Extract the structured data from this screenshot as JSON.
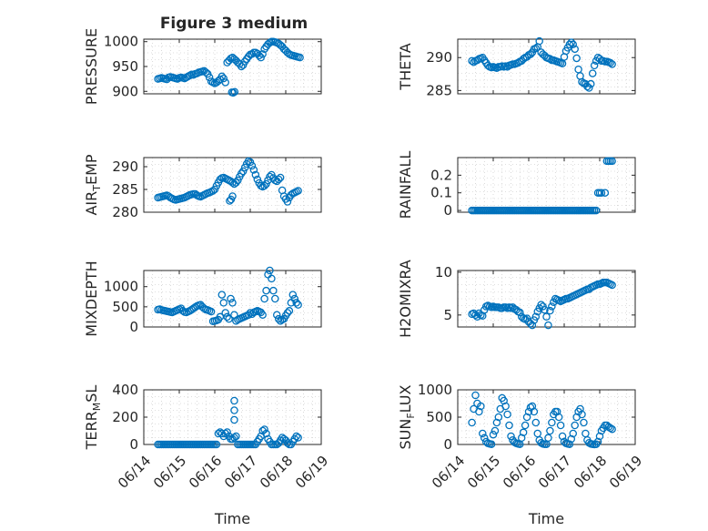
{
  "figure": {
    "title": "Figure 3 medium"
  },
  "colors": {
    "marker": "#0072BD",
    "grid": "#bfbfbf",
    "axis": "#262626"
  },
  "chart_data": [
    {
      "type": "scatter",
      "ylabel": "PRESSURE",
      "yticks": [
        "900",
        "950",
        "1000"
      ],
      "ylim": [
        895,
        1005
      ],
      "xlim": [
        "06/14",
        "06/19"
      ],
      "grid": true,
      "x": [
        0.4,
        0.45,
        0.5,
        0.55,
        0.6,
        0.65,
        0.7,
        0.75,
        0.8,
        0.85,
        0.9,
        0.95,
        1.0,
        1.05,
        1.1,
        1.15,
        1.2,
        1.25,
        1.3,
        1.35,
        1.4,
        1.45,
        1.5,
        1.55,
        1.6,
        1.65,
        1.7,
        1.75,
        1.8,
        1.85,
        1.9,
        1.95,
        2.0,
        2.05,
        2.1,
        2.15,
        2.2,
        2.25,
        2.3,
        2.35,
        2.4,
        2.45,
        2.5,
        2.55,
        2.6,
        2.65,
        2.7,
        2.75,
        2.8,
        2.85,
        2.9,
        2.95,
        3.0,
        3.05,
        3.1,
        3.15,
        3.2,
        3.25,
        3.3,
        3.35,
        3.4,
        3.45,
        3.5,
        3.55,
        3.6,
        3.65,
        3.7,
        3.75,
        3.8,
        3.85,
        3.9,
        3.95,
        4.0,
        4.05,
        4.1,
        4.15,
        4.2,
        4.25,
        4.3,
        4.35,
        4.4,
        2.48,
        2.52,
        2.56
      ],
      "y": [
        925,
        926,
        927,
        926,
        925,
        924,
        928,
        929,
        928,
        927,
        926,
        925,
        927,
        928,
        927,
        926,
        928,
        930,
        932,
        934,
        933,
        935,
        936,
        938,
        939,
        940,
        941,
        938,
        935,
        928,
        920,
        918,
        916,
        918,
        921,
        924,
        930,
        926,
        918,
        958,
        962,
        966,
        968,
        965,
        962,
        958,
        955,
        950,
        953,
        960,
        965,
        970,
        974,
        975,
        978,
        978,
        976,
        972,
        968,
        975,
        985,
        990,
        995,
        998,
        1000,
        1000,
        999,
        998,
        996,
        993,
        990,
        985,
        982,
        978,
        975,
        973,
        972,
        971,
        970,
        969,
        968,
        898,
        897,
        899
      ]
    },
    {
      "type": "scatter",
      "ylabel": "THETA",
      "yticks": [
        "285",
        "290"
      ],
      "ylim": [
        284.5,
        292.8
      ],
      "xlim": [
        "06/14",
        "06/19"
      ],
      "grid": true,
      "x": [
        0.4,
        0.45,
        0.5,
        0.55,
        0.6,
        0.65,
        0.7,
        0.75,
        0.8,
        0.85,
        0.9,
        0.95,
        1.0,
        1.05,
        1.1,
        1.15,
        1.2,
        1.25,
        1.3,
        1.35,
        1.4,
        1.45,
        1.5,
        1.55,
        1.6,
        1.65,
        1.7,
        1.75,
        1.8,
        1.85,
        1.9,
        1.95,
        2.0,
        2.05,
        2.1,
        2.15,
        2.2,
        2.25,
        2.3,
        2.35,
        2.4,
        2.45,
        2.5,
        2.55,
        2.6,
        2.65,
        2.7,
        2.75,
        2.8,
        2.85,
        2.9,
        2.95,
        3.0,
        3.05,
        3.1,
        3.15,
        3.2,
        3.25,
        3.3,
        3.35,
        3.4,
        3.45,
        3.5,
        3.55,
        3.6,
        3.65,
        3.7,
        3.75,
        3.8,
        3.85,
        3.9,
        3.95,
        4.0,
        4.05,
        4.1,
        4.15,
        4.2,
        4.25,
        4.3,
        4.35
      ],
      "y": [
        289.5,
        289.3,
        289.5,
        289.6,
        289.8,
        289.9,
        290.0,
        289.6,
        289.2,
        288.8,
        288.6,
        288.5,
        288.6,
        288.5,
        288.4,
        288.6,
        288.6,
        288.7,
        288.6,
        288.7,
        288.6,
        288.8,
        288.9,
        289.0,
        289.0,
        289.1,
        289.2,
        289.4,
        289.5,
        289.8,
        290.0,
        290.1,
        290.4,
        290.5,
        290.8,
        291.3,
        291.4,
        291.6,
        292.5,
        290.8,
        290.5,
        290.3,
        290.0,
        289.9,
        289.8,
        289.6,
        289.6,
        289.5,
        289.4,
        289.3,
        289.2,
        289.1,
        290.1,
        291.0,
        291.5,
        292.0,
        292.3,
        292.0,
        291.3,
        289.9,
        288.2,
        287.2,
        286.3,
        286.1,
        286.0,
        285.6,
        285.4,
        286.0,
        287.6,
        288.8,
        289.5,
        290.0,
        289.8,
        289.5,
        289.5,
        289.4,
        289.4,
        289.3,
        289.2,
        289.0
      ]
    },
    {
      "type": "scatter",
      "ylabel": "AIR_TEMP",
      "yticks": [
        "280",
        "285",
        "290"
      ],
      "ylim": [
        280.0,
        292.0
      ],
      "xlim": [
        "06/14",
        "06/19"
      ],
      "grid": true,
      "x": [
        0.4,
        0.45,
        0.5,
        0.55,
        0.6,
        0.65,
        0.7,
        0.75,
        0.8,
        0.85,
        0.9,
        0.95,
        1.0,
        1.05,
        1.1,
        1.15,
        1.2,
        1.25,
        1.3,
        1.35,
        1.4,
        1.45,
        1.5,
        1.55,
        1.6,
        1.65,
        1.7,
        1.75,
        1.8,
        1.85,
        1.9,
        1.95,
        2.0,
        2.05,
        2.1,
        2.15,
        2.2,
        2.25,
        2.3,
        2.35,
        2.4,
        2.45,
        2.5,
        2.55,
        2.6,
        2.65,
        2.7,
        2.75,
        2.8,
        2.85,
        2.9,
        2.95,
        3.0,
        3.05,
        3.1,
        3.15,
        3.2,
        3.25,
        3.3,
        3.35,
        3.4,
        3.45,
        3.5,
        3.55,
        3.6,
        3.65,
        3.7,
        3.75,
        3.8,
        3.85,
        3.9,
        3.95,
        4.0,
        4.05,
        4.1,
        4.15,
        4.2,
        4.25,
        4.3,
        4.35,
        2.42,
        2.46,
        2.5
      ],
      "y": [
        283.2,
        283.3,
        283.4,
        283.5,
        283.6,
        283.7,
        283.5,
        283.2,
        283.0,
        282.8,
        282.7,
        282.8,
        282.9,
        283.0,
        283.1,
        283.2,
        283.4,
        283.6,
        283.8,
        283.9,
        284.0,
        284.0,
        283.7,
        283.5,
        283.4,
        283.6,
        283.8,
        284.0,
        284.2,
        284.3,
        284.5,
        284.7,
        285.0,
        285.8,
        286.5,
        287.2,
        287.5,
        287.6,
        287.4,
        287.2,
        287.0,
        286.8,
        286.5,
        286.2,
        286.5,
        287.0,
        287.8,
        288.5,
        289.0,
        289.8,
        290.6,
        291.2,
        291.0,
        290.2,
        289.3,
        288.2,
        287.2,
        286.4,
        285.8,
        285.6,
        285.8,
        286.2,
        287.0,
        287.8,
        288.2,
        287.5,
        287.0,
        286.8,
        287.2,
        287.6,
        284.8,
        283.5,
        282.9,
        282.3,
        283.2,
        283.8,
        284.1,
        284.3,
        284.5,
        284.7,
        282.5,
        282.8,
        283.5
      ]
    },
    {
      "type": "scatter",
      "ylabel": "RAINFALL",
      "yticks": [
        "0",
        "0.1",
        "0.2"
      ],
      "ylim": [
        -0.01,
        0.3
      ],
      "xlim": [
        "06/14",
        "06/19"
      ],
      "grid": true,
      "x": [
        0.4,
        0.45,
        0.5,
        0.55,
        0.6,
        0.65,
        0.7,
        0.75,
        0.8,
        0.85,
        0.9,
        0.95,
        1.0,
        1.05,
        1.1,
        1.15,
        1.2,
        1.25,
        1.3,
        1.35,
        1.4,
        1.45,
        1.5,
        1.55,
        1.6,
        1.65,
        1.7,
        1.75,
        1.8,
        1.85,
        1.9,
        1.95,
        2.0,
        2.05,
        2.1,
        2.15,
        2.2,
        2.25,
        2.3,
        2.35,
        2.4,
        2.45,
        2.5,
        2.55,
        2.6,
        2.65,
        2.7,
        2.75,
        2.8,
        2.85,
        2.9,
        2.95,
        3.0,
        3.05,
        3.1,
        3.15,
        3.2,
        3.25,
        3.3,
        3.35,
        3.4,
        3.45,
        3.5,
        3.55,
        3.6,
        3.65,
        3.7,
        3.75,
        3.8,
        3.85,
        3.9,
        3.95,
        4.0,
        4.05,
        4.15,
        4.2,
        4.25,
        4.3,
        4.35
      ],
      "y": [
        0,
        0,
        0,
        0,
        0,
        0,
        0,
        0,
        0,
        0,
        0,
        0,
        0,
        0,
        0,
        0,
        0,
        0,
        0,
        0,
        0,
        0,
        0,
        0,
        0,
        0,
        0,
        0,
        0,
        0,
        0,
        0,
        0,
        0,
        0,
        0,
        0,
        0,
        0,
        0,
        0,
        0,
        0,
        0,
        0,
        0,
        0,
        0,
        0,
        0,
        0,
        0,
        0,
        0,
        0,
        0,
        0,
        0,
        0,
        0,
        0,
        0,
        0,
        0,
        0,
        0,
        0,
        0,
        0,
        0,
        0,
        0.1,
        0.1,
        0.1,
        0.1,
        0.28,
        0.28,
        0.28,
        0.28
      ]
    },
    {
      "type": "scatter",
      "ylabel": "MIXDEPTH",
      "yticks": [
        "0",
        "500",
        "1000"
      ],
      "ylim": [
        0,
        1400
      ],
      "xlim": [
        "06/14",
        "06/19"
      ],
      "grid": true,
      "x": [
        0.4,
        0.45,
        0.5,
        0.55,
        0.6,
        0.65,
        0.7,
        0.75,
        0.8,
        0.85,
        0.9,
        0.95,
        1.0,
        1.05,
        1.1,
        1.15,
        1.2,
        1.25,
        1.3,
        1.35,
        1.4,
        1.45,
        1.5,
        1.55,
        1.6,
        1.65,
        1.7,
        1.75,
        1.8,
        1.85,
        1.9,
        1.95,
        2.0,
        2.05,
        2.1,
        2.15,
        2.2,
        2.25,
        2.3,
        2.35,
        2.4,
        2.45,
        2.5,
        2.55,
        2.6,
        2.65,
        2.7,
        2.75,
        2.8,
        2.85,
        2.9,
        2.95,
        3.0,
        3.05,
        3.1,
        3.15,
        3.2,
        3.25,
        3.3,
        3.35,
        3.4,
        3.45,
        3.5,
        3.55,
        3.6,
        3.65,
        3.7,
        3.75,
        3.8,
        3.85,
        3.9,
        3.95,
        4.0,
        4.05,
        4.1,
        4.15,
        4.2,
        4.25,
        4.3,
        4.35
      ],
      "y": [
        430,
        440,
        420,
        410,
        400,
        390,
        380,
        370,
        360,
        380,
        400,
        420,
        440,
        460,
        400,
        370,
        360,
        380,
        400,
        430,
        460,
        490,
        520,
        540,
        550,
        500,
        460,
        430,
        420,
        400,
        380,
        140,
        150,
        160,
        180,
        250,
        800,
        600,
        350,
        250,
        200,
        700,
        600,
        300,
        150,
        180,
        200,
        220,
        240,
        260,
        280,
        300,
        350,
        320,
        360,
        380,
        400,
        380,
        360,
        300,
        700,
        900,
        1300,
        1400,
        1200,
        900,
        700,
        300,
        200,
        150,
        180,
        200,
        280,
        350,
        400,
        600,
        800,
        700,
        600,
        550
      ]
    },
    {
      "type": "scatter",
      "ylabel": "H2OMIXRA",
      "yticks": [
        "5",
        "10"
      ],
      "ylim": [
        3.6,
        10.2
      ],
      "xlim": [
        "06/14",
        "06/19"
      ],
      "grid": true,
      "x": [
        0.4,
        0.45,
        0.5,
        0.55,
        0.6,
        0.65,
        0.7,
        0.75,
        0.8,
        0.85,
        0.9,
        0.95,
        1.0,
        1.05,
        1.1,
        1.15,
        1.2,
        1.25,
        1.3,
        1.35,
        1.4,
        1.45,
        1.5,
        1.55,
        1.6,
        1.65,
        1.7,
        1.75,
        1.8,
        1.85,
        1.9,
        1.95,
        2.0,
        2.05,
        2.1,
        2.15,
        2.2,
        2.25,
        2.3,
        2.35,
        2.4,
        2.45,
        2.5,
        2.55,
        2.6,
        2.65,
        2.7,
        2.75,
        2.8,
        2.85,
        2.9,
        2.95,
        3.0,
        3.05,
        3.1,
        3.15,
        3.2,
        3.25,
        3.3,
        3.35,
        3.4,
        3.45,
        3.5,
        3.55,
        3.6,
        3.65,
        3.7,
        3.75,
        3.8,
        3.85,
        3.9,
        3.95,
        4.0,
        4.05,
        4.1,
        4.15,
        4.2,
        4.25,
        4.3,
        4.35
      ],
      "y": [
        5.1,
        5.2,
        5.0,
        4.8,
        5.2,
        5.0,
        4.9,
        5.6,
        6.0,
        6.1,
        6.0,
        5.9,
        6.0,
        5.9,
        5.9,
        5.9,
        5.8,
        5.8,
        5.9,
        5.9,
        5.8,
        5.9,
        5.8,
        5.9,
        5.7,
        5.6,
        5.4,
        5.3,
        4.8,
        4.6,
        4.5,
        4.6,
        4.2,
        4.0,
        3.8,
        4.4,
        4.8,
        5.4,
        5.8,
        6.2,
        6.0,
        5.6,
        4.8,
        3.8,
        5.5,
        6.0,
        6.5,
        6.9,
        6.8,
        6.7,
        6.6,
        6.7,
        6.8,
        6.9,
        6.9,
        7.0,
        7.1,
        7.2,
        7.3,
        7.4,
        7.5,
        7.6,
        7.7,
        7.8,
        7.9,
        8.0,
        8.0,
        8.2,
        8.3,
        8.4,
        8.5,
        8.6,
        8.6,
        8.7,
        8.8,
        8.8,
        8.8,
        8.7,
        8.6,
        8.5
      ]
    },
    {
      "type": "scatter",
      "ylabel": "TERR_MSL",
      "yticks": [
        "0",
        "200",
        "400"
      ],
      "ylim": [
        0,
        400
      ],
      "xlim": [
        "06/14",
        "06/19"
      ],
      "grid": true,
      "x": [
        0.4,
        0.45,
        0.5,
        0.55,
        0.6,
        0.65,
        0.7,
        0.75,
        0.8,
        0.85,
        0.9,
        0.95,
        1.0,
        1.05,
        1.1,
        1.15,
        1.2,
        1.25,
        1.3,
        1.35,
        1.4,
        1.45,
        1.5,
        1.55,
        1.6,
        1.65,
        1.7,
        1.75,
        1.8,
        1.85,
        1.9,
        1.95,
        2.0,
        2.05,
        2.1,
        2.15,
        2.2,
        2.25,
        2.3,
        2.35,
        2.4,
        2.45,
        2.5,
        2.55,
        2.6,
        2.65,
        2.7,
        2.75,
        2.8,
        2.85,
        2.9,
        2.95,
        3.0,
        3.05,
        3.1,
        3.15,
        3.2,
        3.25,
        3.3,
        3.35,
        3.4,
        3.45,
        3.5,
        3.55,
        3.6,
        3.65,
        3.7,
        3.75,
        3.8,
        3.85,
        3.9,
        3.95,
        4.0,
        4.05,
        4.1,
        4.15,
        4.2,
        4.25,
        4.3,
        4.35,
        2.55,
        2.55,
        2.55
      ],
      "y": [
        0,
        0,
        0,
        0,
        0,
        0,
        0,
        0,
        0,
        0,
        0,
        0,
        0,
        0,
        0,
        0,
        0,
        0,
        0,
        0,
        0,
        0,
        0,
        0,
        0,
        0,
        0,
        0,
        0,
        0,
        0,
        0,
        0,
        0,
        80,
        90,
        80,
        60,
        80,
        90,
        60,
        40,
        40,
        50,
        60,
        0,
        0,
        0,
        0,
        0,
        0,
        0,
        0,
        0,
        0,
        0,
        20,
        40,
        60,
        100,
        110,
        80,
        40,
        20,
        0,
        0,
        0,
        0,
        10,
        30,
        50,
        40,
        30,
        10,
        0,
        0,
        20,
        40,
        60,
        50,
        180,
        250,
        320
      ]
    },
    {
      "type": "scatter",
      "ylabel": "SUN_FLUX",
      "yticks": [
        "0",
        "500",
        "1000"
      ],
      "ylim": [
        0,
        1000
      ],
      "xlim": [
        "06/14",
        "06/19"
      ],
      "grid": true,
      "x": [
        0.4,
        0.45,
        0.5,
        0.55,
        0.6,
        0.65,
        0.7,
        0.75,
        0.8,
        0.85,
        0.9,
        0.95,
        1.0,
        1.05,
        1.1,
        1.15,
        1.2,
        1.25,
        1.3,
        1.35,
        1.4,
        1.45,
        1.5,
        1.55,
        1.6,
        1.65,
        1.7,
        1.75,
        1.8,
        1.85,
        1.9,
        1.95,
        2.0,
        2.05,
        2.1,
        2.15,
        2.2,
        2.25,
        2.3,
        2.35,
        2.4,
        2.45,
        2.5,
        2.55,
        2.6,
        2.65,
        2.7,
        2.75,
        2.8,
        2.85,
        2.9,
        2.95,
        3.0,
        3.05,
        3.1,
        3.15,
        3.2,
        3.25,
        3.3,
        3.35,
        3.4,
        3.45,
        3.5,
        3.55,
        3.6,
        3.65,
        3.7,
        3.75,
        3.8,
        3.85,
        3.9,
        3.95,
        4.0,
        4.05,
        4.1,
        4.15,
        4.2,
        4.25,
        4.3,
        4.35
      ],
      "y": [
        400,
        650,
        900,
        750,
        600,
        700,
        200,
        120,
        50,
        20,
        10,
        5,
        180,
        250,
        400,
        500,
        650,
        850,
        800,
        700,
        550,
        350,
        150,
        80,
        40,
        20,
        10,
        5,
        120,
        220,
        350,
        500,
        600,
        680,
        700,
        600,
        400,
        200,
        80,
        30,
        10,
        5,
        5,
        120,
        250,
        400,
        550,
        600,
        600,
        500,
        350,
        150,
        50,
        20,
        10,
        5,
        100,
        200,
        350,
        500,
        600,
        650,
        550,
        400,
        200,
        80,
        30,
        10,
        5,
        0,
        5,
        50,
        150,
        250,
        300,
        350,
        350,
        320,
        300,
        280
      ]
    }
  ]
}
